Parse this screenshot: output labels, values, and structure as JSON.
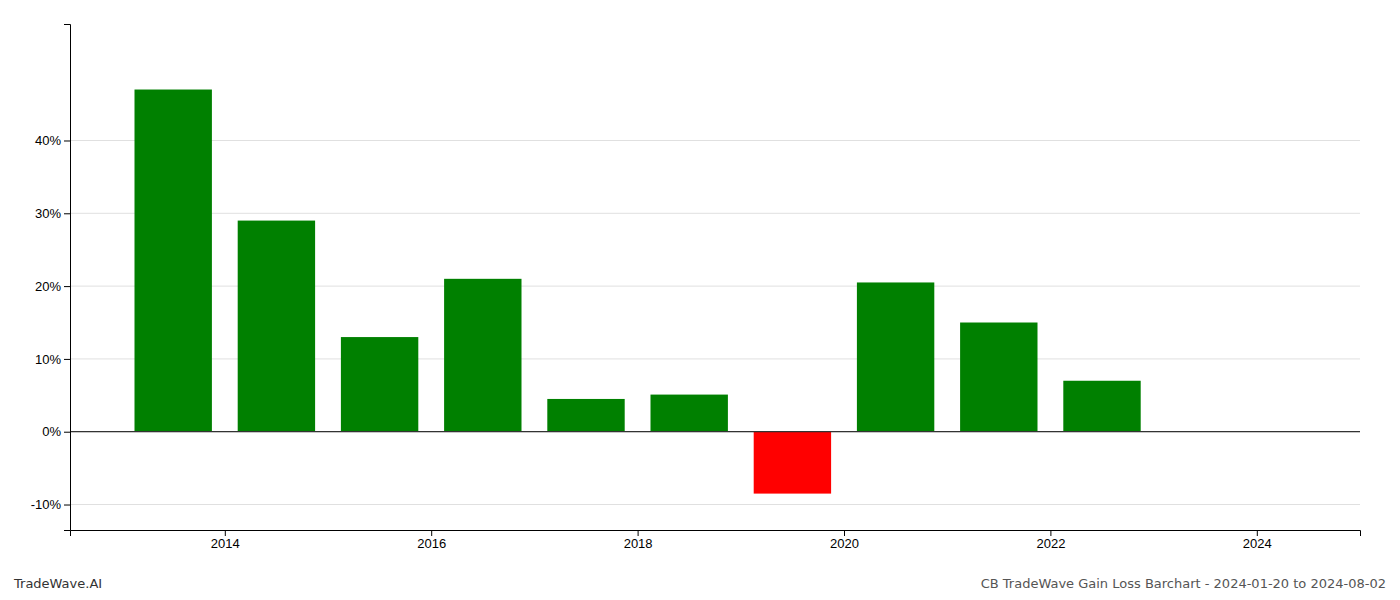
{
  "chart_data": {
    "type": "bar",
    "x": [
      2013.5,
      2014.5,
      2015.5,
      2016.5,
      2017.5,
      2018.5,
      2019.5,
      2020.5,
      2021.5,
      2022.5
    ],
    "values": [
      0.47,
      0.29,
      0.13,
      0.21,
      0.045,
      0.051,
      -0.085,
      0.205,
      0.15,
      0.07
    ],
    "colors": [
      "#008000",
      "#008000",
      "#008000",
      "#008000",
      "#008000",
      "#008000",
      "#ff0000",
      "#008000",
      "#008000",
      "#008000"
    ],
    "xlim": [
      2012.5,
      2025.0
    ],
    "ylim": [
      -0.135,
      0.56
    ],
    "xticks": [
      2014,
      2016,
      2018,
      2020,
      2022,
      2024
    ],
    "yticks": [
      {
        "value": -0.1,
        "label": "-10%"
      },
      {
        "value": 0.0,
        "label": "0%"
      },
      {
        "value": 0.1,
        "label": "10%"
      },
      {
        "value": 0.2,
        "label": "20%"
      },
      {
        "value": 0.3,
        "label": "30%"
      },
      {
        "value": 0.4,
        "label": "40%"
      }
    ],
    "grid": true,
    "annotations": [
      "TradeWave.AI",
      "CB TradeWave Gain Loss Barchart - 2024-01-20 to 2024-08-02"
    ]
  }
}
